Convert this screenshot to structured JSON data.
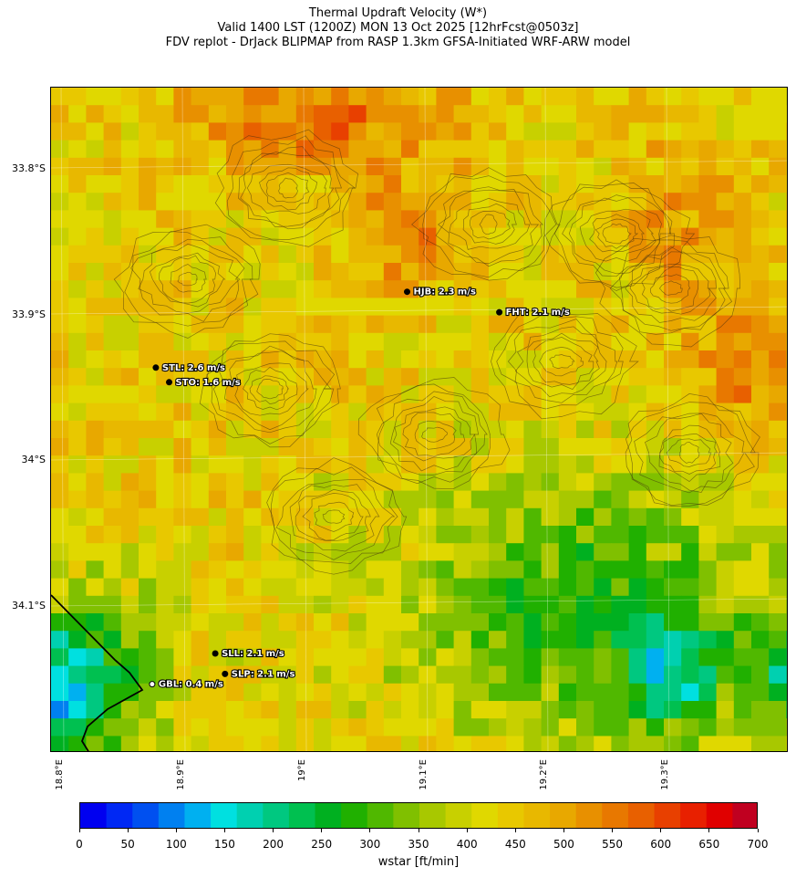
{
  "title": {
    "line1": "Thermal Updraft Velocity (W*)",
    "line2": "Valid 1400 LST (1200Z) MON 13 Oct 2025 [12hrFcst@0503z]",
    "line3": "FDV replot - DrJack BLIPMAP from RASP 1.3km GFSA-Initiated WRF-ARW model"
  },
  "map": {
    "lat_labels": [
      "33.8°S",
      "33.9°S",
      "34°S",
      "34.1°S"
    ],
    "lon_labels": [
      "18.8°E",
      "18.9°E",
      "19°E",
      "19.1°E",
      "19.2°E",
      "19.3°E"
    ],
    "stations": [
      {
        "label": "HJB: 2.3 m/s",
        "lon": 19.085,
        "lat": -33.886
      },
      {
        "label": "FHT: 2.1 m/s",
        "lon": 19.161,
        "lat": -33.9
      },
      {
        "label": "STL: 2.6 m/s",
        "lon": 18.878,
        "lat": -33.938
      },
      {
        "label": "STO: 1.6 m/s",
        "lon": 18.889,
        "lat": -33.948
      },
      {
        "label": "SLL: 2.1 m/s",
        "lon": 18.927,
        "lat": -34.134
      },
      {
        "label": "SLP: 2.1 m/s",
        "lon": 18.935,
        "lat": -34.148
      },
      {
        "label": "GBL: 0.4 m/s",
        "lon": 18.875,
        "lat": -34.155
      }
    ],
    "accent_colors": {
      "station_dot": "#000000",
      "station_text": "#ffffff",
      "coastline": "#000000"
    }
  },
  "colorbar": {
    "label": "wstar [ft/min]",
    "ticks": [
      "0",
      "50",
      "100",
      "150",
      "200",
      "250",
      "300",
      "350",
      "400",
      "450",
      "500",
      "550",
      "600",
      "650",
      "700"
    ],
    "range": [
      0,
      700
    ],
    "colors": [
      "#0000f0",
      "#0028f4",
      "#0050f0",
      "#0080f0",
      "#00b0f0",
      "#00e0e0",
      "#00d0b0",
      "#00c880",
      "#00c050",
      "#00b020",
      "#20b000",
      "#50b800",
      "#80c000",
      "#a8c800",
      "#c8d000",
      "#e0d800",
      "#e8c800",
      "#e8b800",
      "#e8a800",
      "#e89000",
      "#e87800",
      "#e86000",
      "#e84000",
      "#e82000",
      "#e00000",
      "#c00020"
    ]
  }
}
